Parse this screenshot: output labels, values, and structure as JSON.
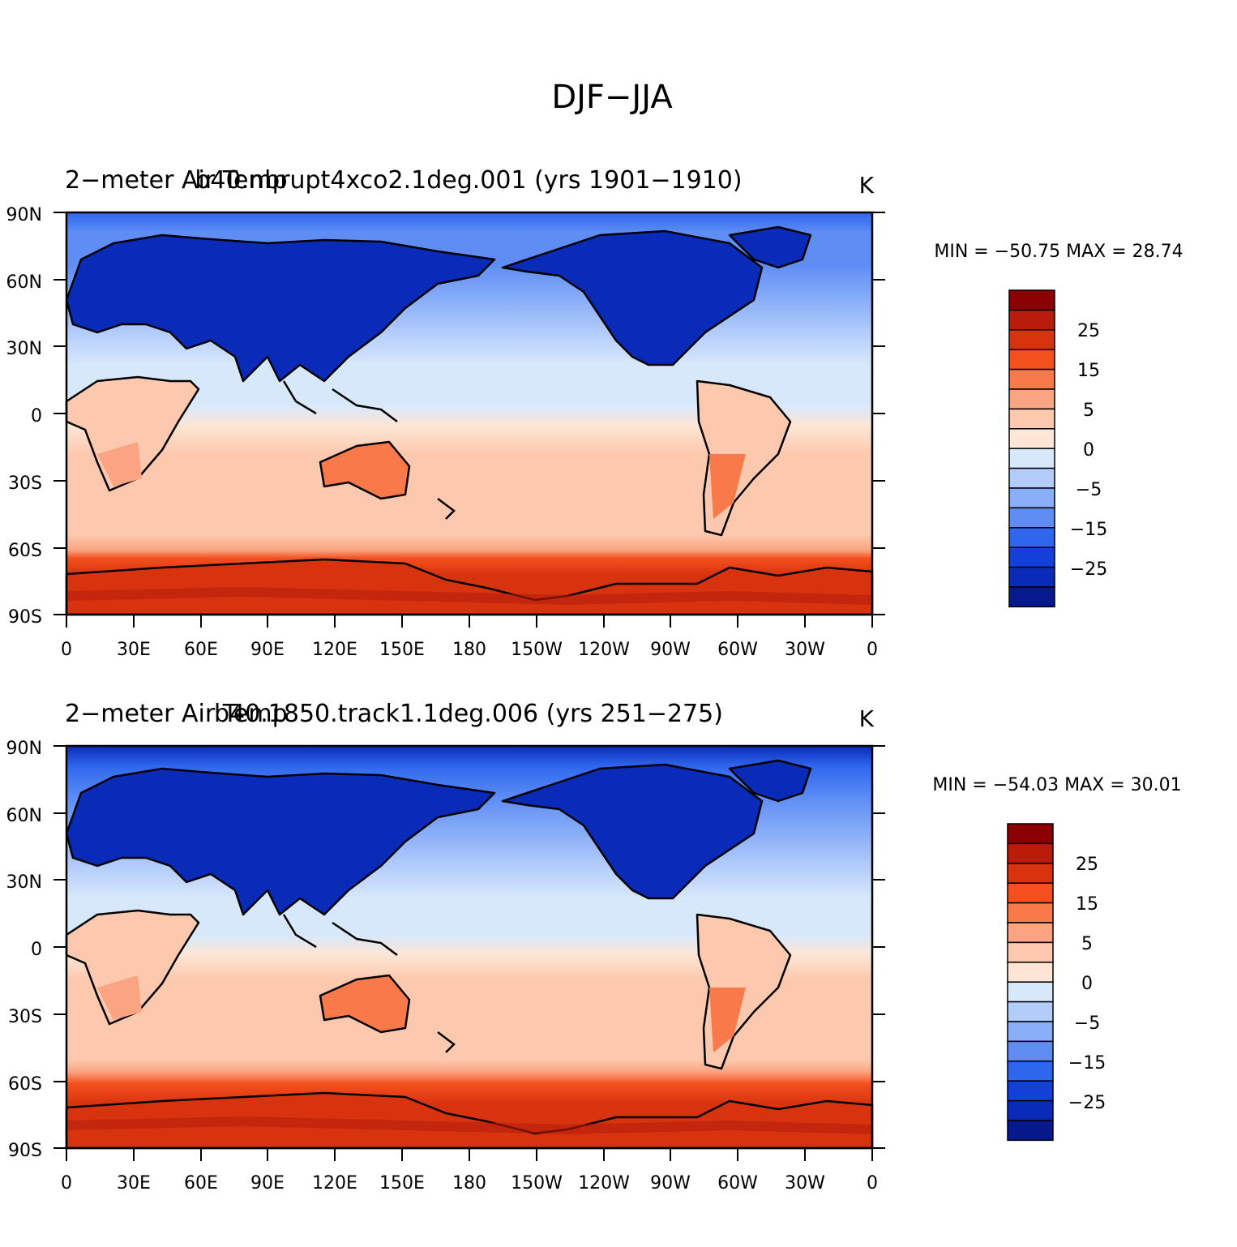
{
  "figure": {
    "title": "DJF−JJA"
  },
  "panels": [
    {
      "left_title": "2−meter Air Temp",
      "center_title": "b40.nbrupt4xco2.1deg.001 (yrs 1901−1910)",
      "units": "K",
      "min_max": "MIN = −50.75  MAX =  28.74"
    },
    {
      "left_title": "2−meter Air Temp",
      "center_title": "b40.1850.track1.1deg.006 (yrs 251−275)",
      "units": "K",
      "min_max": "MIN = −54.03  MAX =  30.01"
    }
  ],
  "axes": {
    "lon_labels": [
      "0",
      "30E",
      "60E",
      "90E",
      "120E",
      "150E",
      "180",
      "150W",
      "120W",
      "90W",
      "60W",
      "30W",
      "0"
    ],
    "lat_labels": [
      "90N",
      "60N",
      "30N",
      "0",
      "30S",
      "60S",
      "90S"
    ]
  },
  "colorbar": {
    "labels": [
      "25",
      "15",
      "5",
      "0",
      "−5",
      "−15",
      "−25"
    ],
    "colors": [
      "#8b0000",
      "#b81c0b",
      "#d8330f",
      "#f4501e",
      "#f87a4a",
      "#fba481",
      "#fdc9ae",
      "#fde6d6",
      "#d8e8fb",
      "#b3cdfb",
      "#8aaff8",
      "#5e8df4",
      "#2f66ee",
      "#1340d8",
      "#0a2ab8",
      "#061a8e"
    ]
  },
  "colors": {
    "ocean_cold": "#2f66ee",
    "land_outline": "#000000"
  }
}
